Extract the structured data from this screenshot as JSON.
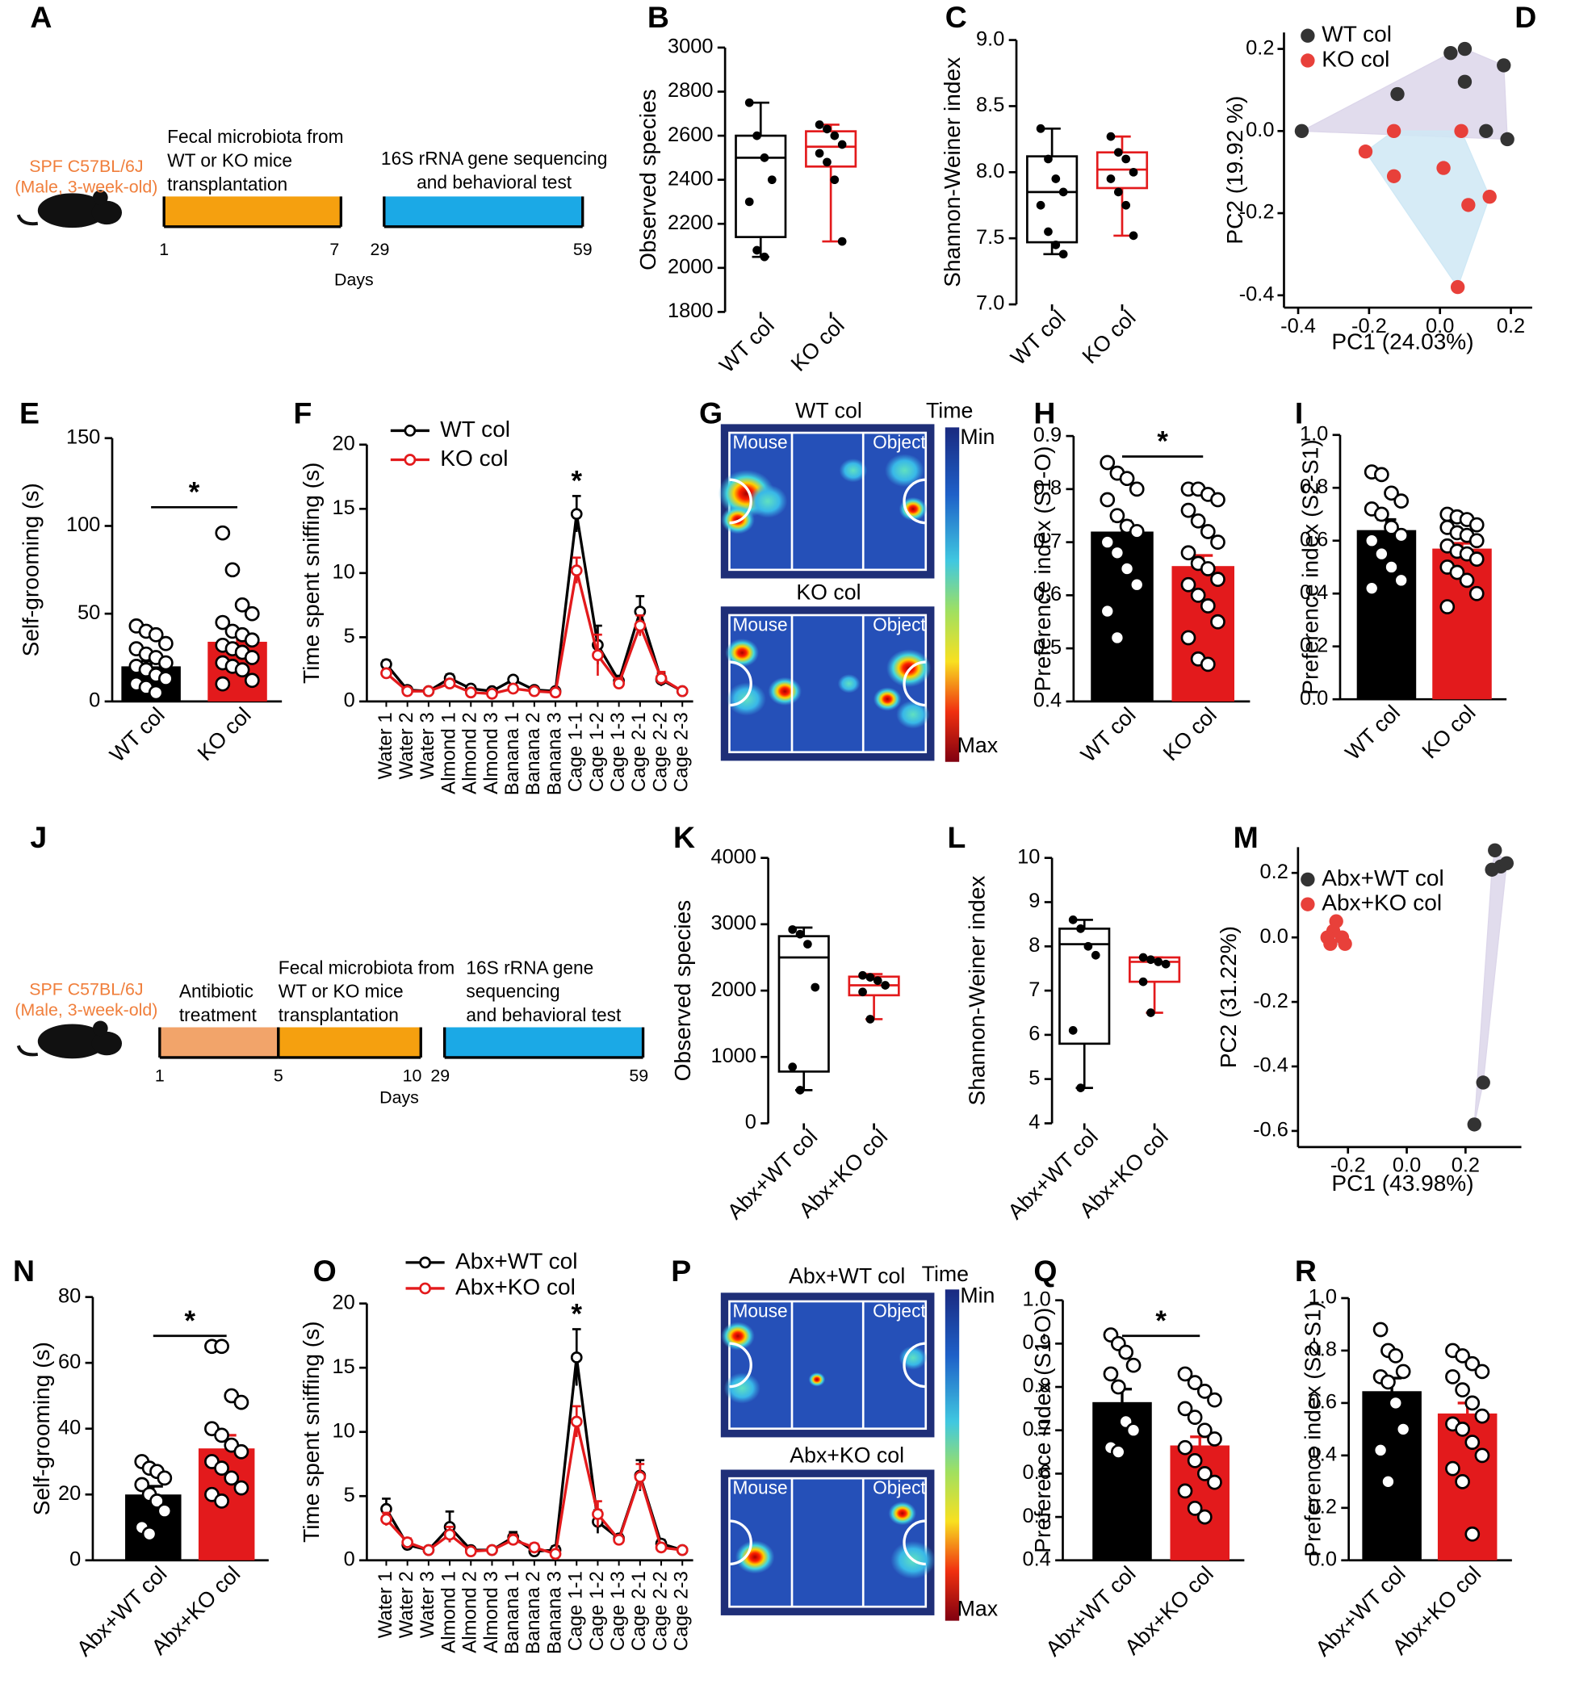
{
  "chart_data": [
    {
      "label": "A",
      "type": "timeline",
      "subject": [
        "SPF C57BL/6J",
        "(Male, 3-week-old)"
      ],
      "subject_color": "#f07f3c",
      "segments": [
        {
          "lines": [
            "Fecal microbiota from",
            "WT or KO mice",
            "transplantation"
          ],
          "color": "#f5a00f"
        },
        {
          "lines": [
            "16S rRNA gene sequencing",
            "and behavioral test"
          ],
          "color": "#1ba9e6"
        }
      ],
      "day_ticks": [
        1,
        7,
        29,
        59
      ],
      "x_label": "Days"
    },
    {
      "label": "B",
      "type": "box",
      "y_label": "Observed species",
      "ylim": [
        1800,
        3000
      ],
      "yticks": [
        1800,
        2000,
        2200,
        2400,
        2600,
        2800,
        3000
      ],
      "categories": [
        "WT col",
        "KO col"
      ],
      "boxes": [
        {
          "color": "#000000",
          "whisker_low": 2050,
          "q1": 2140,
          "median": 2500,
          "q3": 2600,
          "whisker_high": 2750,
          "points": [
            2750,
            2600,
            2500,
            2400,
            2300,
            2080,
            2050
          ]
        },
        {
          "color": "#e31a1c",
          "whisker_low": 2120,
          "q1": 2460,
          "median": 2550,
          "q3": 2620,
          "whisker_high": 2650,
          "points": [
            2650,
            2630,
            2600,
            2560,
            2520,
            2480,
            2400,
            2120
          ]
        }
      ]
    },
    {
      "label": "C",
      "type": "box",
      "y_label": "Shannon-Weiner index",
      "ylim": [
        7,
        9
      ],
      "yticks": [
        {
          "value": 7,
          "label": "7.0"
        },
        7.5,
        {
          "value": 8,
          "label": "8.0"
        },
        8.5,
        {
          "value": 9,
          "label": "9.0"
        }
      ],
      "categories": [
        "WT col",
        "KO col"
      ],
      "boxes": [
        {
          "color": "#000000",
          "whisker_low": 7.38,
          "q1": 7.47,
          "median": 7.85,
          "q3": 8.12,
          "whisker_high": 8.33,
          "points": [
            8.33,
            8.1,
            7.95,
            7.85,
            7.75,
            7.55,
            7.45,
            7.38
          ]
        },
        {
          "color": "#e31a1c",
          "whisker_low": 7.52,
          "q1": 7.88,
          "median": 8.02,
          "q3": 8.15,
          "whisker_high": 8.27,
          "points": [
            8.27,
            8.15,
            8.1,
            8.0,
            7.95,
            7.85,
            7.75,
            7.52
          ]
        }
      ]
    },
    {
      "label": "D",
      "type": "scatter",
      "x_label": "PC1 (24.03%)",
      "y_label": "PC2 (19.92 %)",
      "xlim": [
        -0.44,
        0.26
      ],
      "ylim": [
        -0.43,
        0.24
      ],
      "xticks": [
        -0.4,
        -0.2,
        {
          "value": 0,
          "label": "0.0"
        },
        0.2
      ],
      "yticks": [
        -0.4,
        -0.2,
        {
          "value": 0,
          "label": "0.0"
        },
        0.2
      ],
      "series": [
        {
          "name": "WT col",
          "color": "#333333",
          "hull_color": "#dcd6ea",
          "x": [
            -0.39,
            -0.12,
            0.03,
            0.07,
            0.07,
            0.18,
            0.13,
            0.19
          ],
          "y": [
            0.0,
            0.09,
            0.19,
            0.2,
            0.12,
            0.16,
            0.0,
            -0.02
          ]
        },
        {
          "name": "KO col",
          "color": "#e8403a",
          "hull_color": "#cfe8f5",
          "x": [
            -0.21,
            -0.13,
            -0.13,
            0.01,
            0.06,
            0.08,
            0.14,
            0.05
          ],
          "y": [
            -0.05,
            0.0,
            -0.11,
            -0.09,
            0.0,
            -0.18,
            -0.16,
            -0.38
          ]
        }
      ]
    },
    {
      "label": "E",
      "type": "bar",
      "y_label": "Self-grooming (s)",
      "ylim": [
        0,
        150
      ],
      "yticks": [
        0,
        50,
        100,
        150
      ],
      "categories": [
        "WT col",
        "KO col"
      ],
      "colors": [
        "#000000",
        "#e31a1c"
      ],
      "values": [
        20,
        34
      ],
      "errors": [
        3,
        5
      ],
      "points": [
        [
          43,
          40,
          38,
          33,
          30,
          27,
          25,
          22,
          20,
          18,
          15,
          13,
          10,
          8,
          5
        ],
        [
          96,
          75,
          55,
          50,
          45,
          40,
          38,
          35,
          32,
          30,
          28,
          25,
          22,
          20,
          18,
          12,
          10
        ]
      ],
      "annotation": "*"
    },
    {
      "label": "F",
      "type": "line",
      "y_label": "Time spent  sniffing (s)",
      "ylim": [
        0,
        20
      ],
      "yticks": [
        0,
        5,
        10,
        15,
        20
      ],
      "categories": [
        "Water 1",
        "Water 2",
        "Water 3",
        "Almond 1",
        "Almond 2",
        "Almond 3",
        "Banana 1",
        "Banana 2",
        "Banana 3",
        "Cage 1-1",
        "Cage 1-2",
        "Cage 1-3",
        "Cage 2-1",
        "Cage 2-2",
        "Cage 2-3"
      ],
      "series": [
        {
          "name": "WT col",
          "color": "#000000",
          "values": [
            2.9,
            0.9,
            0.8,
            1.8,
            1.0,
            0.8,
            1.7,
            0.9,
            0.8,
            14.6,
            4.4,
            1.6,
            7.0,
            1.7,
            0.8
          ],
          "errors": [
            0.3,
            0.2,
            0.2,
            0.3,
            0.2,
            0.2,
            0.2,
            0.2,
            0.2,
            1.4,
            1.5,
            0.4,
            1.2,
            0.5,
            0.2
          ]
        },
        {
          "name": "KO col",
          "color": "#e31a1c",
          "values": [
            2.2,
            0.8,
            0.8,
            1.4,
            0.7,
            0.6,
            1.0,
            0.8,
            0.7,
            10.2,
            3.6,
            1.4,
            5.9,
            1.8,
            0.8
          ],
          "errors": [
            0.3,
            0.2,
            0.2,
            0.3,
            0.2,
            0.2,
            0.3,
            0.2,
            0.2,
            1.0,
            1.6,
            0.4,
            0.8,
            0.5,
            0.2
          ]
        }
      ],
      "annotation": "*"
    },
    {
      "label": "G",
      "type": "heatmap",
      "titles": [
        "WT col",
        "KO col"
      ],
      "zone_labels": [
        "Mouse",
        "Object"
      ],
      "colorbar_title": "Time",
      "colorbar_labels": [
        "Min",
        "Max"
      ]
    },
    {
      "label": "H",
      "type": "bar",
      "y_label": "Preference index (S1-O)",
      "ylim": [
        0.4,
        0.9
      ],
      "yticks": [
        0.4,
        0.5,
        0.6,
        0.7,
        0.8,
        0.9
      ],
      "categories": [
        "WT col",
        "KO col"
      ],
      "colors": [
        "#000000",
        "#e31a1c"
      ],
      "values": [
        0.72,
        0.655
      ],
      "errors": [
        0.02,
        0.02
      ],
      "points": [
        [
          0.85,
          0.83,
          0.82,
          0.8,
          0.78,
          0.75,
          0.73,
          0.72,
          0.7,
          0.68,
          0.65,
          0.62,
          0.57,
          0.52
        ],
        [
          0.8,
          0.8,
          0.79,
          0.78,
          0.76,
          0.74,
          0.72,
          0.7,
          0.68,
          0.66,
          0.65,
          0.63,
          0.62,
          0.6,
          0.58,
          0.55,
          0.52,
          0.48,
          0.47
        ]
      ],
      "annotation": "*"
    },
    {
      "label": "I",
      "type": "bar",
      "y_label": "Preference index (S2-S1)",
      "ylim": [
        0,
        1
      ],
      "yticks": [
        {
          "value": 0,
          "label": "0.0"
        },
        0.2,
        0.4,
        0.6,
        0.8,
        {
          "value": 1,
          "label": "1.0"
        }
      ],
      "categories": [
        "WT col",
        "KO col"
      ],
      "colors": [
        "#000000",
        "#e31a1c"
      ],
      "values": [
        0.64,
        0.57
      ],
      "errors": [
        0.04,
        0.02
      ],
      "points": [
        [
          0.86,
          0.85,
          0.78,
          0.75,
          0.72,
          0.7,
          0.65,
          0.62,
          0.6,
          0.55,
          0.5,
          0.45,
          0.42
        ],
        [
          0.7,
          0.69,
          0.68,
          0.66,
          0.65,
          0.63,
          0.62,
          0.6,
          0.58,
          0.56,
          0.55,
          0.53,
          0.5,
          0.48,
          0.45,
          0.4,
          0.35
        ]
      ]
    },
    {
      "label": "J",
      "type": "timeline",
      "subject": [
        "SPF C57BL/6J",
        "(Male, 3-week-old)"
      ],
      "subject_color": "#f07f3c",
      "segments": [
        {
          "lines": [
            "Antibiotic",
            "treatment"
          ],
          "color": "#f2a46a"
        },
        {
          "lines": [
            "Fecal microbiota from",
            "WT or KO mice",
            "transplantation"
          ],
          "color": "#f5a00f"
        },
        {
          "lines": [
            "16S rRNA gene",
            "sequencing",
            "and behavioral test"
          ],
          "color": "#1ba9e6"
        }
      ],
      "day_ticks": [
        1,
        5,
        10,
        29,
        59
      ],
      "x_label": "Days"
    },
    {
      "label": "K",
      "type": "box",
      "y_label": "Observed species",
      "ylim": [
        0,
        4000
      ],
      "yticks": [
        0,
        1000,
        2000,
        3000,
        4000
      ],
      "categories": [
        "Abx+WT col",
        "Abx+KO col"
      ],
      "boxes": [
        {
          "color": "#000000",
          "whisker_low": 500,
          "q1": 780,
          "median": 2500,
          "q3": 2820,
          "whisker_high": 2950,
          "points": [
            2920,
            2850,
            2700,
            2050,
            850,
            500
          ]
        },
        {
          "color": "#e31a1c",
          "whisker_low": 1570,
          "q1": 1930,
          "median": 2080,
          "q3": 2210,
          "whisker_high": 2250,
          "points": [
            2230,
            2200,
            2150,
            2080,
            1980,
            1570
          ]
        }
      ]
    },
    {
      "label": "L",
      "type": "box",
      "y_label": "Shannon-Weiner index",
      "ylim": [
        4,
        10
      ],
      "yticks": [
        4,
        5,
        6,
        7,
        8,
        9,
        10
      ],
      "categories": [
        "Abx+WT col",
        "Abx+KO col"
      ],
      "boxes": [
        {
          "color": "#000000",
          "whisker_low": 4.8,
          "q1": 5.8,
          "median": 8.05,
          "q3": 8.4,
          "whisker_high": 8.6,
          "points": [
            8.6,
            8.4,
            8.0,
            7.8,
            6.1,
            4.8
          ]
        },
        {
          "color": "#e31a1c",
          "whisker_low": 6.5,
          "q1": 7.2,
          "median": 7.65,
          "q3": 7.75,
          "whisker_high": 7.75,
          "points": [
            7.75,
            7.7,
            7.65,
            7.6,
            7.2,
            6.5
          ]
        }
      ]
    },
    {
      "label": "M",
      "type": "scatter",
      "x_label": "PC1 (43.98%)",
      "y_label": "PC2 (31.22%)",
      "xlim": [
        -0.37,
        0.39
      ],
      "ylim": [
        -0.65,
        0.28
      ],
      "xticks": [
        -0.2,
        {
          "value": 0,
          "label": "0.0"
        },
        0.2
      ],
      "yticks": [
        -0.6,
        -0.4,
        -0.2,
        {
          "value": 0,
          "label": "0.0"
        },
        0.2
      ],
      "series": [
        {
          "name": "Abx+WT col",
          "color": "#333333",
          "hull_color": "#dcd6ea",
          "x": [
            0.3,
            0.32,
            0.29,
            0.34,
            0.26,
            0.23
          ],
          "y": [
            0.27,
            0.22,
            0.21,
            0.23,
            -0.45,
            -0.58
          ]
        },
        {
          "name": "Abx+KO col",
          "color": "#e8403a",
          "hull_color": "#cfe8f5",
          "x": [
            -0.24,
            -0.25,
            -0.27,
            -0.22,
            -0.26,
            -0.21
          ],
          "y": [
            0.05,
            0.02,
            0.0,
            0.0,
            -0.02,
            -0.02
          ]
        }
      ]
    },
    {
      "label": "N",
      "type": "bar",
      "y_label": "Self-grooming (s)",
      "ylim": [
        0,
        80
      ],
      "yticks": [
        0,
        20,
        40,
        60,
        80
      ],
      "categories": [
        "Abx+WT col",
        "Abx+KO col"
      ],
      "colors": [
        "#000000",
        "#e31a1c"
      ],
      "values": [
        20,
        34
      ],
      "errors": [
        2.5,
        4
      ],
      "points": [
        [
          30,
          28,
          27,
          25,
          23,
          20,
          18,
          15,
          10,
          8
        ],
        [
          65,
          65,
          50,
          48,
          40,
          38,
          35,
          33,
          30,
          28,
          25,
          22,
          20,
          18
        ]
      ],
      "annotation": "*"
    },
    {
      "label": "O",
      "type": "line",
      "y_label": "Time spent  sniffing (s)",
      "ylim": [
        0,
        20
      ],
      "yticks": [
        0,
        5,
        10,
        15,
        20
      ],
      "categories": [
        "Water 1",
        "Water 2",
        "Water 3",
        "Almond 1",
        "Almond 2",
        "Almond 3",
        "Banana 1",
        "Banana 2",
        "Banana 3",
        "Cage 1-1",
        "Cage 1-2",
        "Cage 1-3",
        "Cage 2-1",
        "Cage 2-2",
        "Cage 2-3"
      ],
      "series": [
        {
          "name": "Abx+WT col",
          "color": "#000000",
          "values": [
            4.0,
            1.2,
            0.8,
            2.6,
            0.8,
            0.8,
            1.8,
            0.7,
            0.8,
            15.8,
            3.0,
            1.7,
            6.6,
            1.3,
            0.8
          ],
          "errors": [
            0.8,
            0.2,
            0.2,
            1.2,
            0.2,
            0.2,
            0.4,
            0.3,
            0.3,
            2.2,
            0.9,
            0.3,
            1.2,
            0.3,
            0.2
          ]
        },
        {
          "name": "Abx+KO col",
          "color": "#e31a1c",
          "values": [
            3.2,
            1.4,
            0.8,
            2.0,
            0.7,
            0.8,
            1.6,
            1.0,
            0.5,
            10.8,
            3.6,
            1.6,
            6.5,
            1.0,
            0.8
          ],
          "errors": [
            0.5,
            0.3,
            0.2,
            0.6,
            0.2,
            0.2,
            0.4,
            0.3,
            0.3,
            1.2,
            1.0,
            0.3,
            1.0,
            0.2,
            0.2
          ]
        }
      ],
      "annotation": "*"
    },
    {
      "label": "P",
      "type": "heatmap",
      "titles": [
        "Abx+WT col",
        "Abx+KO col"
      ],
      "zone_labels": [
        "Mouse",
        "Object"
      ],
      "colorbar_title": "Time",
      "colorbar_labels": [
        "Min",
        "Max"
      ]
    },
    {
      "label": "Q",
      "type": "bar",
      "y_label": "Preference index (S1-O)",
      "ylim": [
        0.4,
        1
      ],
      "yticks": [
        0.4,
        0.5,
        0.6,
        0.7,
        0.8,
        0.9,
        {
          "value": 1,
          "label": "1.0"
        }
      ],
      "categories": [
        "Abx+WT col",
        "Abx+KO col"
      ],
      "colors": [
        "#000000",
        "#e31a1c"
      ],
      "values": [
        0.765,
        0.665
      ],
      "errors": [
        0.03,
        0.02
      ],
      "points": [
        [
          0.92,
          0.9,
          0.88,
          0.85,
          0.83,
          0.8,
          0.72,
          0.7,
          0.66,
          0.65
        ],
        [
          0.83,
          0.81,
          0.79,
          0.77,
          0.75,
          0.73,
          0.7,
          0.68,
          0.66,
          0.63,
          0.6,
          0.58,
          0.56,
          0.52,
          0.5
        ]
      ],
      "annotation": "*"
    },
    {
      "label": "R",
      "type": "bar",
      "y_label": "Preference index (S2-S1)",
      "ylim": [
        0,
        1
      ],
      "yticks": [
        {
          "value": 0,
          "label": "0.0"
        },
        0.2,
        0.4,
        0.6,
        0.8,
        {
          "value": 1,
          "label": "1.0"
        }
      ],
      "categories": [
        "Abx+WT col",
        "Abx+KO col"
      ],
      "colors": [
        "#000000",
        "#e31a1c"
      ],
      "values": [
        0.645,
        0.56
      ],
      "errors": [
        0.05,
        0.04
      ],
      "points": [
        [
          0.88,
          0.8,
          0.78,
          0.72,
          0.7,
          0.68,
          0.6,
          0.5,
          0.42,
          0.3
        ],
        [
          0.8,
          0.78,
          0.75,
          0.72,
          0.7,
          0.65,
          0.6,
          0.55,
          0.52,
          0.5,
          0.45,
          0.4,
          0.35,
          0.3,
          0.1
        ]
      ]
    }
  ]
}
